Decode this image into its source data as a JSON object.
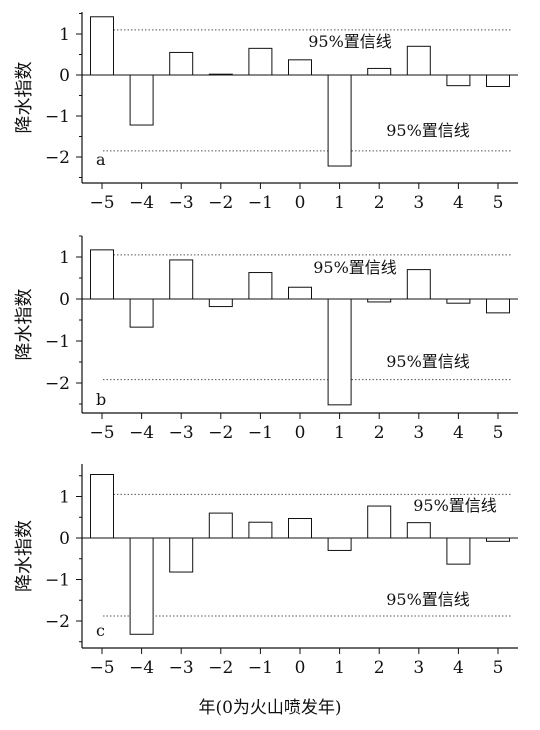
{
  "chart_data": [
    {
      "type": "bar",
      "panel_label": "a",
      "categories": [
        "−5",
        "−4",
        "−3",
        "−2",
        "−1",
        "0",
        "1",
        "2",
        "3",
        "4",
        "5"
      ],
      "values": [
        1.42,
        -1.22,
        0.55,
        0.02,
        0.65,
        0.37,
        -2.22,
        0.16,
        0.7,
        -0.26,
        -0.28
      ],
      "ylabel": "降水指数",
      "yticks": [
        1,
        0,
        -1,
        -2
      ],
      "ylim": [
        -2.55,
        1.5
      ],
      "confidence_upper": 1.1,
      "confidence_lower": -1.85,
      "confidence_upper_label": "95%置信线",
      "confidence_lower_label": "95%置信线"
    },
    {
      "type": "bar",
      "panel_label": "b",
      "categories": [
        "−5",
        "−4",
        "−3",
        "−2",
        "−1",
        "0",
        "1",
        "2",
        "3",
        "4",
        "5"
      ],
      "values": [
        1.17,
        -0.67,
        0.93,
        -0.18,
        0.63,
        0.28,
        -2.52,
        -0.07,
        0.7,
        -0.1,
        -0.33
      ],
      "ylabel": "降水指数",
      "yticks": [
        1,
        0,
        -1,
        -2
      ],
      "ylim": [
        -2.65,
        1.5
      ],
      "confidence_upper": 1.05,
      "confidence_lower": -1.92,
      "confidence_upper_label": "95%置信线",
      "confidence_lower_label": "95%置信线"
    },
    {
      "type": "bar",
      "panel_label": "c",
      "categories": [
        "−5",
        "−4",
        "−3",
        "−2",
        "−1",
        "0",
        "1",
        "2",
        "3",
        "4",
        "5"
      ],
      "values": [
        1.53,
        -2.32,
        -0.82,
        0.6,
        0.38,
        0.47,
        -0.3,
        0.77,
        0.37,
        -0.63,
        -0.08
      ],
      "ylabel": "降水指数",
      "yticks": [
        1,
        0,
        -1,
        -2
      ],
      "ylim": [
        -2.65,
        1.65
      ],
      "confidence_upper": 1.05,
      "confidence_lower": -1.88,
      "confidence_upper_label": "95%置信线",
      "confidence_lower_label": "95%置信线"
    }
  ],
  "xlabel": "年(0为火山喷发年)"
}
